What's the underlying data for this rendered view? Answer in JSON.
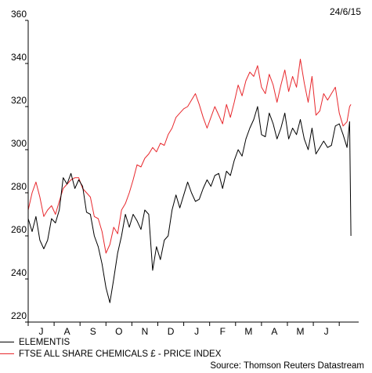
{
  "date_label": "24/6/15",
  "source": "Source: Thomson Reuters Datastream",
  "colors": {
    "series1": "#000000",
    "series2": "#e8282d",
    "axis": "#000000"
  },
  "chart_data": {
    "type": "line",
    "title": "",
    "xlabel": "",
    "ylabel": "",
    "ylim": [
      220,
      360
    ],
    "yticks": [
      220,
      240,
      260,
      280,
      300,
      320,
      340,
      360
    ],
    "xlim": [
      0,
      12.75
    ],
    "xticks": [
      "J",
      "A",
      "S",
      "O",
      "N",
      "D",
      "J",
      "F",
      "M",
      "A",
      "M",
      "J"
    ],
    "grid": false,
    "legend": "bottom-left",
    "series": [
      {
        "name": "ELEMENTIS",
        "x": [
          0,
          0.15,
          0.3,
          0.45,
          0.6,
          0.75,
          0.9,
          1.05,
          1.2,
          1.35,
          1.5,
          1.65,
          1.8,
          1.95,
          2.1,
          2.25,
          2.4,
          2.55,
          2.7,
          2.85,
          3.0,
          3.15,
          3.3,
          3.45,
          3.6,
          3.75,
          3.9,
          4.05,
          4.2,
          4.35,
          4.5,
          4.65,
          4.8,
          4.95,
          5.1,
          5.25,
          5.4,
          5.55,
          5.7,
          5.85,
          6.0,
          6.15,
          6.3,
          6.45,
          6.6,
          6.75,
          6.9,
          7.05,
          7.2,
          7.35,
          7.5,
          7.65,
          7.8,
          7.95,
          8.1,
          8.25,
          8.4,
          8.55,
          8.7,
          8.85,
          9.0,
          9.15,
          9.3,
          9.45,
          9.6,
          9.75,
          9.9,
          10.05,
          10.2,
          10.35,
          10.5,
          10.65,
          10.8,
          10.95,
          11.1,
          11.25,
          11.4,
          11.55,
          11.7,
          11.85,
          12.0,
          12.15,
          12.3,
          12.4,
          12.45
        ],
        "values": [
          268,
          262,
          269,
          258,
          254,
          258,
          268,
          266,
          272,
          287,
          284,
          289,
          282,
          286,
          283,
          271,
          270,
          260,
          255,
          247,
          236,
          229,
          240,
          252,
          260,
          270,
          264,
          270,
          267,
          263,
          272,
          270,
          244,
          255,
          249,
          258,
          260,
          272,
          279,
          273,
          279,
          285,
          280,
          276,
          277,
          282,
          286,
          283,
          288,
          289,
          282,
          290,
          288,
          295,
          300,
          297,
          305,
          310,
          314,
          320,
          307,
          306,
          317,
          312,
          305,
          310,
          317,
          305,
          310,
          307,
          314,
          305,
          300,
          310,
          298,
          301,
          304,
          301,
          302,
          311,
          312,
          307,
          301,
          313,
          260
        ]
      },
      {
        "name": "FTSE ALL SHARE CHEMICALS £ - PRICE INDEX",
        "x": [
          0,
          0.15,
          0.3,
          0.45,
          0.6,
          0.75,
          0.9,
          1.05,
          1.2,
          1.35,
          1.5,
          1.65,
          1.8,
          1.95,
          2.1,
          2.25,
          2.4,
          2.55,
          2.7,
          2.85,
          3.0,
          3.15,
          3.3,
          3.45,
          3.6,
          3.75,
          3.9,
          4.05,
          4.2,
          4.35,
          4.5,
          4.65,
          4.8,
          4.95,
          5.1,
          5.25,
          5.4,
          5.55,
          5.7,
          5.85,
          6.0,
          6.15,
          6.3,
          6.45,
          6.6,
          6.75,
          6.9,
          7.05,
          7.2,
          7.35,
          7.5,
          7.65,
          7.8,
          7.95,
          8.1,
          8.25,
          8.4,
          8.55,
          8.7,
          8.85,
          9.0,
          9.15,
          9.3,
          9.45,
          9.6,
          9.75,
          9.9,
          10.05,
          10.2,
          10.35,
          10.5,
          10.65,
          10.8,
          10.95,
          11.1,
          11.25,
          11.4,
          11.55,
          11.7,
          11.85,
          12.0,
          12.15,
          12.3,
          12.4,
          12.45
        ],
        "values": [
          272,
          280,
          285,
          278,
          269,
          272,
          274,
          270,
          276,
          282,
          284,
          286,
          287,
          287,
          282,
          280,
          278,
          269,
          268,
          262,
          252,
          256,
          264,
          261,
          272,
          275,
          280,
          286,
          293,
          292,
          296,
          298,
          301,
          299,
          303,
          302,
          307,
          310,
          315,
          317,
          319,
          320,
          323,
          326,
          321,
          315,
          310,
          315,
          320,
          316,
          312,
          321,
          315,
          322,
          330,
          325,
          332,
          336,
          334,
          339,
          329,
          326,
          335,
          330,
          322,
          330,
          337,
          327,
          334,
          329,
          342,
          331,
          322,
          334,
          316,
          318,
          326,
          323,
          326,
          329,
          317,
          311,
          313,
          320,
          321
        ]
      }
    ]
  }
}
